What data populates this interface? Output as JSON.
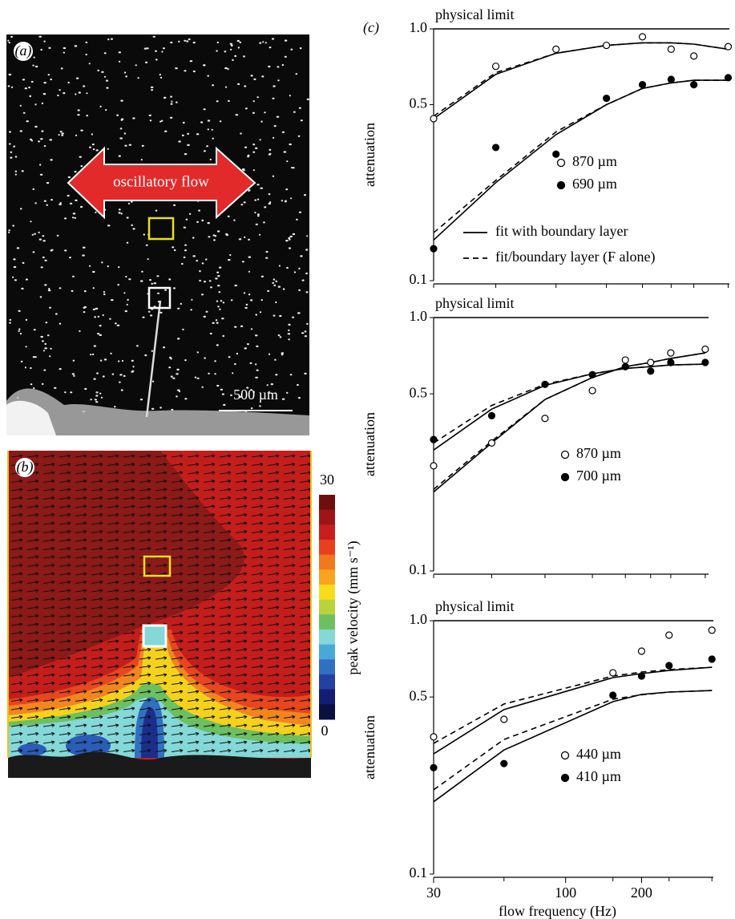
{
  "panels": {
    "a": {
      "label": "(a)",
      "arrow_text": "oscillatory flow",
      "scale_bar": "500 µm"
    },
    "b": {
      "label": "(b)",
      "colorbar": {
        "title": "peak velocity (mm s⁻¹)",
        "max": 30,
        "min": 0,
        "colors": [
          "#6e0f0f",
          "#9c1616",
          "#c81e1e",
          "#e8401e",
          "#f0781e",
          "#f8a41e",
          "#f8dc1c",
          "#b8d43c",
          "#6cc060",
          "#84d8d8",
          "#48a8d8",
          "#3070c0",
          "#2440a0",
          "#141c74",
          "#0a1040"
        ]
      }
    }
  },
  "chart_data": [
    {
      "type": "line",
      "panel_label": "(c)",
      "limit_label": "physical limit",
      "y_label": "attenuation",
      "x": [
        30,
        53,
        92,
        146,
        203,
        264,
        325,
        445
      ],
      "xlim": [
        30,
        450
      ],
      "ylim": [
        0.1,
        1
      ],
      "log_x": true,
      "log_y": true,
      "yticks": [
        0.1,
        0.5,
        {
          "value": 1,
          "label": "1.0"
        }
      ],
      "fit_legend": [
        "fit with boundary layer",
        "fit/boundary layer (F alone)"
      ],
      "series": [
        {
          "name": "870 µm",
          "marker": "open",
          "color": "#000000",
          "values": [
            0.44,
            0.71,
            0.83,
            0.86,
            0.93,
            0.83,
            0.78,
            0.85
          ],
          "fit": [
            0.44,
            0.66,
            0.8,
            0.86,
            0.88,
            0.88,
            0.87,
            0.83
          ],
          "fit_f_alone": [
            0.45,
            0.67,
            0.8,
            0.86,
            0.88,
            0.88,
            0.87,
            0.83
          ]
        },
        {
          "name": "690 µm",
          "marker": "filled",
          "color": "#000000",
          "values": [
            0.134,
            0.338,
            0.318,
            0.53,
            0.6,
            0.63,
            0.6,
            0.64
          ],
          "fit": [
            0.145,
            0.245,
            0.38,
            0.5,
            0.58,
            0.61,
            0.625,
            0.625
          ],
          "fit_f_alone": [
            0.155,
            0.25,
            0.39,
            0.5,
            0.58,
            0.61,
            0.625,
            0.625
          ]
        }
      ]
    },
    {
      "type": "line",
      "limit_label": "physical limit",
      "y_label": "attenuation",
      "x": [
        30,
        51,
        83,
        128,
        173,
        218,
        262,
        359
      ],
      "xlim": [
        30,
        370
      ],
      "ylim": [
        0.1,
        1
      ],
      "log_x": true,
      "log_y": true,
      "yticks": [
        0.1,
        0.5,
        {
          "value": 1,
          "label": "1.0"
        }
      ],
      "series": [
        {
          "name": "870 µm",
          "marker": "open",
          "color": "#000000",
          "values": [
            0.26,
            0.32,
            0.4,
            0.515,
            0.68,
            0.665,
            0.725,
            0.75
          ],
          "fit": [
            0.205,
            0.32,
            0.475,
            0.58,
            0.64,
            0.665,
            0.69,
            0.725
          ],
          "fit_f_alone": [
            0.21,
            0.325,
            0.475,
            0.58,
            0.64,
            0.665,
            0.69,
            0.725
          ]
        },
        {
          "name": "700 µm",
          "marker": "filled",
          "color": "#000000",
          "values": [
            0.33,
            0.41,
            0.545,
            0.595,
            0.64,
            0.615,
            0.665,
            0.665
          ],
          "fit": [
            0.3,
            0.435,
            0.54,
            0.6,
            0.63,
            0.64,
            0.65,
            0.655
          ],
          "fit_f_alone": [
            0.32,
            0.45,
            0.545,
            0.6,
            0.63,
            0.64,
            0.65,
            0.655
          ]
        }
      ]
    },
    {
      "type": "line",
      "limit_label": "physical limit",
      "y_label": "attenuation",
      "x_label": "flow frequency (Hz)",
      "x": [
        30,
        57,
        154,
        200,
        257,
        380
      ],
      "xlim": [
        30,
        385
      ],
      "ylim": [
        0.1,
        1
      ],
      "log_x": true,
      "log_y": true,
      "xticks": [
        30,
        100,
        200
      ],
      "yticks": [
        0.1,
        0.5,
        {
          "value": 1,
          "label": "1.0"
        }
      ],
      "series": [
        {
          "name": "440 µm",
          "marker": "open",
          "color": "#000000",
          "values": [
            0.348,
            0.408,
            0.623,
            0.758,
            0.877,
            0.917
          ],
          "fit": [
            0.298,
            0.446,
            0.596,
            0.618,
            0.636,
            0.655
          ],
          "fit_f_alone": [
            0.328,
            0.469,
            0.605,
            0.627,
            0.641,
            0.655
          ]
        },
        {
          "name": "410 µm",
          "marker": "filled",
          "color": "#000000",
          "values": [
            0.263,
            0.273,
            0.508,
            0.605,
            0.665,
            0.705
          ],
          "fit": [
            0.193,
            0.309,
            0.479,
            0.512,
            0.523,
            0.53
          ],
          "fit_f_alone": [
            0.215,
            0.34,
            0.49,
            0.51,
            0.523,
            0.53
          ]
        }
      ]
    }
  ]
}
